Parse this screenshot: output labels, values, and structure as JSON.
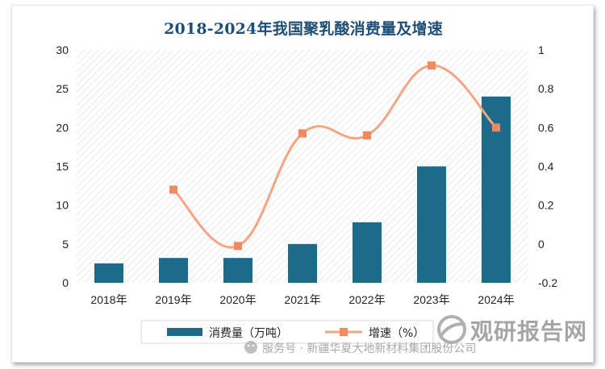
{
  "title": "2018-2024年我国聚乳酸消费量及增速",
  "chart_data": {
    "type": "bar",
    "categories": [
      "2018年",
      "2019年",
      "2020年",
      "2021年",
      "2022年",
      "2023年",
      "2024年"
    ],
    "series": [
      {
        "name": "消费量（万吨）",
        "type": "bar",
        "axis": "left",
        "values": [
          2.5,
          3.2,
          3.2,
          5.0,
          7.8,
          15.0,
          24.0
        ]
      },
      {
        "name": "增速（%）",
        "type": "line",
        "axis": "right",
        "values": [
          null,
          0.28,
          -0.01,
          0.57,
          0.56,
          0.92,
          0.6
        ]
      }
    ],
    "y_left": {
      "min": 0,
      "max": 30,
      "ticks": [
        0,
        5,
        10,
        15,
        20,
        25,
        30
      ]
    },
    "y_right": {
      "min": -0.2,
      "max": 1,
      "ticks": [
        -0.2,
        0,
        0.2,
        0.4,
        0.6,
        0.8,
        1
      ]
    },
    "y_right_tick_labels": [
      "-0.2",
      "0",
      "0.2",
      "0.4",
      "0.6",
      "0.8",
      "1"
    ],
    "grid": false,
    "legend": "bottom"
  },
  "colors": {
    "bar": "#1d6a8a",
    "line": "#f4a582",
    "marker": "#f08a5d",
    "title": "#1f4e79"
  },
  "watermark": "服务号 · 新疆华夏大地新材料集团股份公司",
  "brand": "观研报告网"
}
